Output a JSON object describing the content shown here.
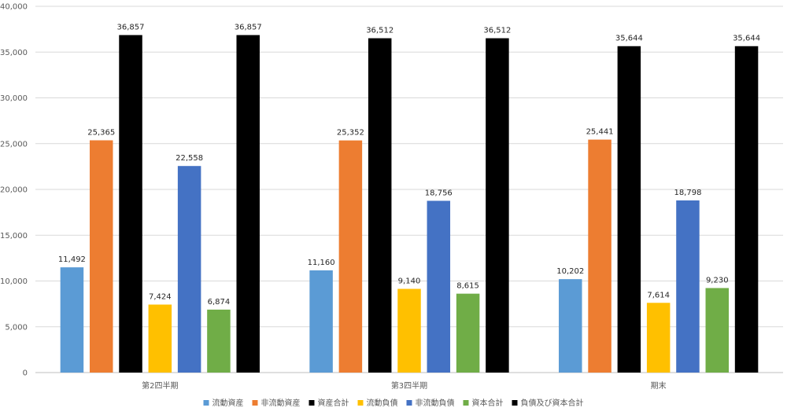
{
  "chart_data": {
    "type": "bar",
    "title": "",
    "xlabel": "",
    "ylabel": "",
    "categories": [
      "第2四半期",
      "第3四半期",
      "期末"
    ],
    "ylim": [
      0,
      40000
    ],
    "yticks": [
      0,
      5000,
      10000,
      15000,
      20000,
      25000,
      30000,
      35000,
      40000
    ],
    "ytick_labels": [
      "0",
      "5,000",
      "10,000",
      "15,000",
      "20,000",
      "25,000",
      "30,000",
      "35,000",
      "40,000"
    ],
    "grid": true,
    "legend_position": "bottom",
    "series": [
      {
        "name": "流動資産",
        "color": "#5B9BD5",
        "values": [
          11492,
          11160,
          10202
        ],
        "labels": [
          "11,492",
          "11,160",
          "10,202"
        ]
      },
      {
        "name": "非流動資産",
        "color": "#ED7D31",
        "values": [
          25365,
          25352,
          25441
        ],
        "labels": [
          "25,365",
          "25,352",
          "25,441"
        ]
      },
      {
        "name": "資産合計",
        "color": "#000000",
        "values": [
          36857,
          36512,
          35644
        ],
        "labels": [
          "36,857",
          "36,512",
          "35,644"
        ]
      },
      {
        "name": "流動負債",
        "color": "#FFC000",
        "values": [
          7424,
          9140,
          7614
        ],
        "labels": [
          "7,424",
          "9,140",
          "7,614"
        ]
      },
      {
        "name": "非流動負債",
        "color": "#4472C4",
        "values": [
          22558,
          18756,
          18798
        ],
        "labels": [
          "22,558",
          "18,756",
          "18,798"
        ]
      },
      {
        "name": "資本合計",
        "color": "#70AD47",
        "values": [
          6874,
          8615,
          9230
        ],
        "labels": [
          "6,874",
          "8,615",
          "9,230"
        ]
      },
      {
        "name": "負債及び資本合計",
        "color": "#000000",
        "values": [
          36857,
          36512,
          35644
        ],
        "labels": [
          "36,857",
          "36,512",
          "35,644"
        ]
      }
    ]
  }
}
